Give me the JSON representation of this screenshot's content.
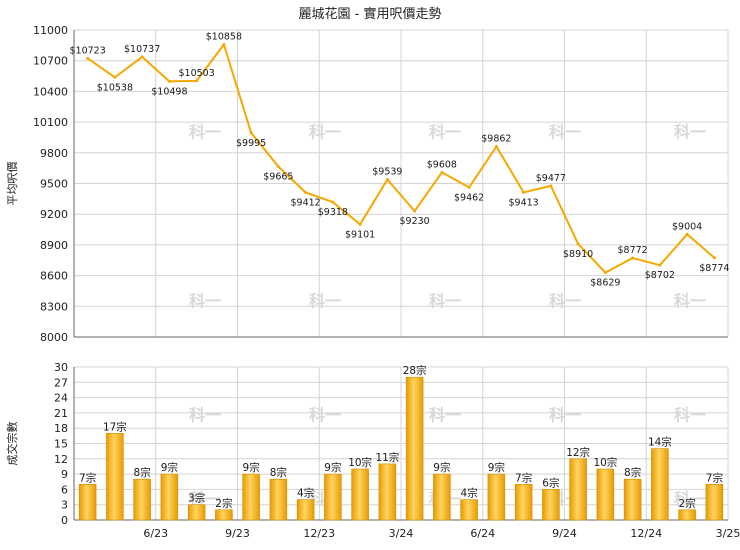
{
  "chart_data": [
    {
      "type": "line",
      "title": "麗城花園 - 實用呎價走勢",
      "ylabel": "平均呎價",
      "ylim": [
        8000,
        11000
      ],
      "yticks": [
        8000,
        8300,
        8600,
        8900,
        9200,
        9500,
        9800,
        10100,
        10400,
        10700,
        11000
      ],
      "x_ticks": [
        "6/23",
        "9/23",
        "12/23",
        "3/24",
        "6/24",
        "9/24",
        "12/24",
        "3/25"
      ],
      "grid": true,
      "color": "#F5A800",
      "values": [
        10723,
        10538,
        10737,
        10498,
        10503,
        10858,
        9995,
        9665,
        9412,
        9318,
        9101,
        9539,
        9230,
        9608,
        9462,
        9862,
        9413,
        9477,
        8910,
        8629,
        8772,
        8702,
        9004,
        8774
      ],
      "labels": [
        "$10723",
        "$10538",
        "$10737",
        "$10498",
        "$10503",
        "$10858",
        "$9995",
        "$9665",
        "$9412",
        "$9318",
        "$9101",
        "$9539",
        "$9230",
        "$9608",
        "$9462",
        "$9862",
        "$9413",
        "$9477",
        "$8910",
        "$8629",
        "$8772",
        "$8702",
        "$9004",
        "$8774"
      ]
    },
    {
      "type": "bar",
      "ylabel": "成交宗數",
      "ylim": [
        0,
        30
      ],
      "yticks": [
        0,
        3,
        6,
        9,
        12,
        15,
        18,
        21,
        24,
        27,
        30
      ],
      "x_ticks": [
        "6/23",
        "9/23",
        "12/23",
        "3/24",
        "6/24",
        "9/24",
        "12/24",
        "3/25"
      ],
      "grid": true,
      "color": "#F5A800",
      "values": [
        7,
        17,
        8,
        9,
        3,
        2,
        9,
        8,
        4,
        9,
        10,
        11,
        28,
        9,
        4,
        9,
        7,
        6,
        12,
        10,
        8,
        14,
        2,
        7
      ],
      "labels": [
        "7宗",
        "17宗",
        "8宗",
        "9宗",
        "3宗",
        "2宗",
        "9宗",
        "8宗",
        "4宗",
        "9宗",
        "10宗",
        "11宗",
        "28宗",
        "9宗",
        "4宗",
        "9宗",
        "7宗",
        "6宗",
        "12宗",
        "10宗",
        "8宗",
        "14宗",
        "2宗",
        "7宗"
      ]
    }
  ]
}
